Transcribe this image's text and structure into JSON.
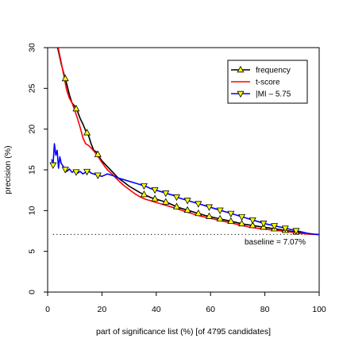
{
  "chart_data": {
    "type": "line",
    "xlabel": "part of significance list (%) [of 4795 candidates]",
    "ylabel": "precision (%)",
    "xlim": [
      0,
      100
    ],
    "ylim": [
      0,
      30
    ],
    "xticks": [
      0,
      20,
      40,
      60,
      80,
      100
    ],
    "yticks": [
      0,
      5,
      10,
      15,
      20,
      25,
      30
    ],
    "grid": false,
    "legend_position": "top-right",
    "baseline": {
      "y": 7.07,
      "label": "baseline = 7.07%"
    },
    "series": [
      {
        "name": "frequency",
        "color": "#000000",
        "marker": "triangle-up",
        "marker_fill": "#ffff00",
        "x": [
          2,
          3,
          4,
          5,
          6,
          7,
          8,
          9,
          10,
          11,
          12,
          13,
          14,
          15,
          16,
          17,
          18,
          19,
          20,
          22,
          24,
          26,
          28,
          30,
          32,
          34,
          36,
          38,
          40,
          42,
          44,
          46,
          48,
          50,
          52,
          54,
          56,
          58,
          60,
          62,
          64,
          66,
          68,
          70,
          72,
          74,
          76,
          78,
          80,
          82,
          84,
          86,
          88,
          90,
          92,
          94,
          96,
          98,
          100
        ],
        "values": [
          34,
          31,
          29.5,
          28,
          26.8,
          25.6,
          24.2,
          23.2,
          22.8,
          22.2,
          21.3,
          20.6,
          19.8,
          19.3,
          18.2,
          17.4,
          17.2,
          16.6,
          16.1,
          15.4,
          14.7,
          14.0,
          13.5,
          13.0,
          12.6,
          12.2,
          11.9,
          11.6,
          11.4,
          11.2,
          11.0,
          10.7,
          10.4,
          10.2,
          10.0,
          9.8,
          9.6,
          9.4,
          9.25,
          9.1,
          8.95,
          8.8,
          8.65,
          8.5,
          8.35,
          8.25,
          8.15,
          8.05,
          7.95,
          7.85,
          7.75,
          7.65,
          7.55,
          7.45,
          7.35,
          7.25,
          7.15,
          7.1,
          7.07
        ],
        "marker_x": [
          6.5,
          10.5,
          14.5,
          18.5,
          35.5,
          39.5,
          43.5,
          47.5,
          51.5,
          55.5,
          59.5,
          63.5,
          67.5,
          71.5,
          75.5,
          79.5,
          83.5,
          87.5,
          91.5
        ]
      },
      {
        "name": "t-score",
        "color": "#ff0000",
        "marker": "none",
        "x": [
          3,
          4,
          5,
          6,
          7,
          8,
          9,
          10,
          11,
          12,
          13,
          14,
          15,
          16,
          17,
          18,
          19,
          20,
          22,
          24,
          26,
          28,
          30,
          32,
          34,
          36,
          38,
          40,
          42,
          44,
          46,
          48,
          50,
          52,
          54,
          56,
          58,
          60,
          62,
          64,
          66,
          68,
          70,
          72,
          74,
          76,
          78,
          80,
          82,
          84,
          86,
          88,
          90,
          92,
          94,
          96,
          98,
          100
        ],
        "values": [
          31,
          29.8,
          28.2,
          26.5,
          24.8,
          23.8,
          23.2,
          22.3,
          21.3,
          20.2,
          18.9,
          18.2,
          18.0,
          17.7,
          17.3,
          16.9,
          16.4,
          15.9,
          15.0,
          14.4,
          13.7,
          13.1,
          12.6,
          12.1,
          11.7,
          11.4,
          11.2,
          11.0,
          10.8,
          10.6,
          10.4,
          10.2,
          9.95,
          9.75,
          9.55,
          9.35,
          9.2,
          9.05,
          8.9,
          8.75,
          8.6,
          8.45,
          8.3,
          8.15,
          8.0,
          7.9,
          7.8,
          7.72,
          7.65,
          7.58,
          7.5,
          7.42,
          7.34,
          7.25,
          7.18,
          7.12,
          7.08,
          7.07
        ]
      },
      {
        "name": "|MI – 5.75",
        "color": "#0000ff",
        "marker": "triangle-down",
        "marker_fill": "#ffff00",
        "x": [
          1.5,
          2,
          2.5,
          3,
          3.5,
          4,
          4.5,
          5,
          6,
          7,
          8,
          9,
          10,
          11,
          12,
          13,
          14,
          15,
          16,
          18,
          20,
          22,
          24,
          26,
          28,
          30,
          32,
          34,
          36,
          38,
          40,
          42,
          44,
          46,
          48,
          50,
          52,
          54,
          56,
          58,
          60,
          62,
          64,
          66,
          68,
          70,
          72,
          74,
          76,
          78,
          80,
          82,
          84,
          86,
          88,
          90,
          92,
          94,
          96,
          98,
          100
        ],
        "values": [
          16.3,
          15.6,
          18.2,
          16.8,
          17.4,
          15.2,
          16.6,
          15.8,
          15.3,
          14.8,
          15.1,
          14.7,
          14.9,
          14.6,
          14.8,
          14.5,
          14.7,
          14.9,
          14.6,
          14.4,
          14.2,
          14.5,
          14.3,
          14.0,
          13.8,
          13.6,
          13.4,
          13.2,
          13.0,
          12.7,
          12.5,
          12.3,
          12.1,
          11.9,
          11.6,
          11.4,
          11.2,
          11.0,
          10.8,
          10.6,
          10.4,
          10.2,
          10.0,
          9.8,
          9.6,
          9.4,
          9.2,
          9.0,
          8.8,
          8.6,
          8.4,
          8.25,
          8.1,
          7.95,
          7.8,
          7.65,
          7.5,
          7.35,
          7.2,
          7.1,
          7.07
        ],
        "marker_x": [
          2,
          6.5,
          10.5,
          14.5,
          18.5,
          35.5,
          39.5,
          43.5,
          47.5,
          51.5,
          55.5,
          59.5,
          63.5,
          67.5,
          71.5,
          75.5,
          79.5,
          83.5,
          87.5,
          91.5
        ]
      }
    ]
  }
}
